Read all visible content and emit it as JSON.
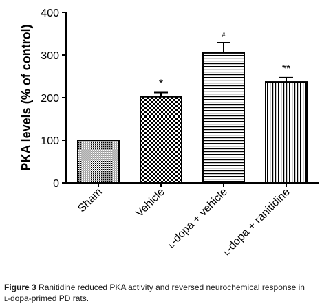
{
  "chart_data": {
    "type": "bar",
    "categories": [
      "Sham",
      "Vehicle",
      "L-dopa + vehicle",
      "L-dopa + ranitidine"
    ],
    "category_labels": [
      {
        "prefix": "",
        "prefix_small": "",
        "rest": "Sham"
      },
      {
        "prefix": "",
        "prefix_small": "",
        "rest": "Vehicle"
      },
      {
        "prefix": "L",
        "prefix_small": "-",
        "rest": "dopa + vehicle"
      },
      {
        "prefix": "L",
        "prefix_small": "-",
        "rest": "dopa + ranitidine"
      }
    ],
    "values": [
      100,
      202,
      305,
      237
    ],
    "error": [
      0,
      10,
      24,
      10
    ],
    "annotations": [
      "",
      "*",
      "#",
      "**"
    ],
    "patterns": [
      "fine-dots",
      "checker",
      "horizontal-lines",
      "vertical-lines"
    ],
    "ylabel": "PKA levels (% of control)",
    "xlabel": "",
    "title": "",
    "ylim": [
      0,
      400
    ],
    "yticks": [
      0,
      100,
      200,
      300,
      400
    ],
    "grid": false,
    "legend": false
  },
  "caption": {
    "label": "Figure 3",
    "text": "Ranitidine reduced PKA activity and reversed neurochemical response in",
    "line2_prefix": "L",
    "line2_rest": "-dopa-primed PD rats."
  },
  "colors": {
    "bar_edge": "#000000",
    "bar_fill": "#ffffff",
    "axis": "#000000",
    "caption_text": "#1a1a1a"
  }
}
